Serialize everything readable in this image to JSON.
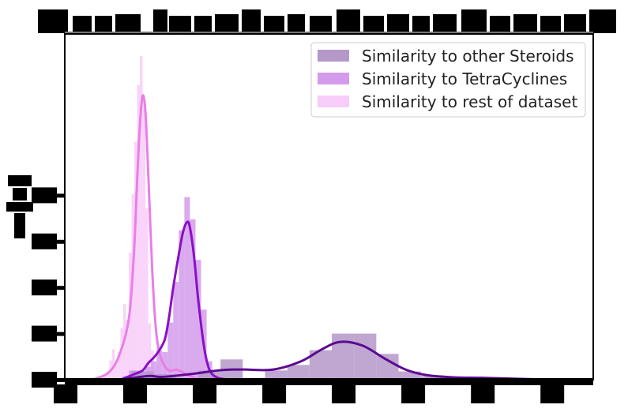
{
  "chart_data": {
    "type": "histogram",
    "title": "",
    "xlabel": "",
    "ylabel": "",
    "xlim": [
      0.0,
      0.38
    ],
    "ylim": [
      0,
      37.5
    ],
    "tick_label_style": "blacked-out",
    "legend": {
      "placement": "top-right",
      "entries": [
        {
          "label": "Similarity to other Steroids",
          "color": "#b498c9"
        },
        {
          "label": "Similarity to TetraCyclines",
          "color": "#d49bec"
        },
        {
          "label": "Similarity to rest of dataset",
          "color": "#f8cdf9"
        }
      ]
    },
    "series": [
      {
        "name": "Similarity to rest of dataset",
        "bar_color": "#f8cdf9",
        "kde_color": "#ea7ee6",
        "bin_width": 0.002,
        "bin_starts": [
          0.026,
          0.028,
          0.03,
          0.032,
          0.034,
          0.036,
          0.038,
          0.04,
          0.042,
          0.044,
          0.046,
          0.048,
          0.05,
          0.052,
          0.054,
          0.056,
          0.058,
          0.06,
          0.062,
          0.064,
          0.066,
          0.068,
          0.07
        ],
        "values": [
          0.2,
          0.5,
          0.9,
          2.1,
          3.3,
          1.6,
          3.0,
          5.6,
          8.2,
          6.5,
          13.8,
          20.1,
          25.8,
          32.0,
          35.1,
          30.0,
          18.6,
          6.1,
          3.2,
          1.0,
          1.6,
          0.6,
          0.2
        ],
        "kde_x": [
          0.02,
          0.03,
          0.036,
          0.04,
          0.044,
          0.047,
          0.05,
          0.052,
          0.054,
          0.056,
          0.058,
          0.06,
          0.063,
          0.066,
          0.07,
          0.075,
          0.08,
          0.085,
          0.09,
          0.095,
          0.1
        ],
        "kde_y": [
          0.0,
          0.6,
          1.6,
          3.0,
          5.0,
          7.8,
          14.5,
          21.5,
          27.6,
          30.8,
          29.0,
          22.5,
          11.5,
          4.8,
          2.0,
          1.0,
          1.1,
          0.8,
          0.4,
          0.1,
          0.0
        ]
      },
      {
        "name": "Similarity to TetraCyclines",
        "bar_color": "#d49bec",
        "kde_color": "#8a10c5",
        "bin_width": 0.004,
        "bin_starts": [
          0.042,
          0.046,
          0.05,
          0.054,
          0.058,
          0.062,
          0.066,
          0.07,
          0.074,
          0.078,
          0.082,
          0.086,
          0.09,
          0.094,
          0.098,
          0.102,
          0.106
        ],
        "values": [
          0.4,
          1.0,
          1.0,
          0.6,
          1.4,
          2.0,
          3.2,
          3.0,
          6.2,
          10.6,
          16.2,
          19.8,
          17.4,
          13.0,
          7.6,
          2.0,
          0.5
        ],
        "kde_x": [
          0.04,
          0.05,
          0.056,
          0.06,
          0.064,
          0.068,
          0.072,
          0.075,
          0.078,
          0.082,
          0.085,
          0.088,
          0.09,
          0.093,
          0.096,
          0.1,
          0.103,
          0.106,
          0.11,
          0.115,
          0.12
        ],
        "kde_y": [
          0.0,
          0.6,
          1.0,
          1.8,
          2.4,
          3.2,
          4.4,
          6.8,
          10.0,
          13.6,
          16.0,
          17.1,
          16.5,
          13.3,
          8.6,
          3.7,
          1.5,
          0.6,
          0.2,
          0.05,
          0.0
        ]
      },
      {
        "name": "Similarity to other Steroids",
        "bar_color": "#b498c9",
        "kde_color": "#5b0a91",
        "bin_width": 0.016,
        "bin_starts": [
          0.048,
          0.064,
          0.08,
          0.096,
          0.112,
          0.128,
          0.144,
          0.16,
          0.176,
          0.192,
          0.208,
          0.224,
          0.24,
          0.256,
          0.272,
          0.288,
          0.304,
          0.32
        ],
        "values": [
          0.9,
          0.6,
          0.0,
          1.0,
          2.2,
          0.0,
          1.0,
          1.6,
          3.2,
          5.0,
          5.0,
          2.8,
          0.9,
          0.4,
          0.2,
          0.1,
          0.1,
          0.05
        ],
        "kde_x": [
          0.04,
          0.06,
          0.07,
          0.09,
          0.11,
          0.12,
          0.13,
          0.15,
          0.17,
          0.185,
          0.198,
          0.214,
          0.23,
          0.245,
          0.26,
          0.28,
          0.3,
          0.33,
          0.35
        ],
        "kde_y": [
          0.0,
          0.4,
          0.3,
          0.6,
          1.0,
          1.1,
          1.1,
          1.1,
          2.0,
          3.3,
          4.1,
          3.7,
          2.3,
          1.1,
          0.5,
          0.25,
          0.2,
          0.08,
          0.0
        ]
      }
    ]
  }
}
